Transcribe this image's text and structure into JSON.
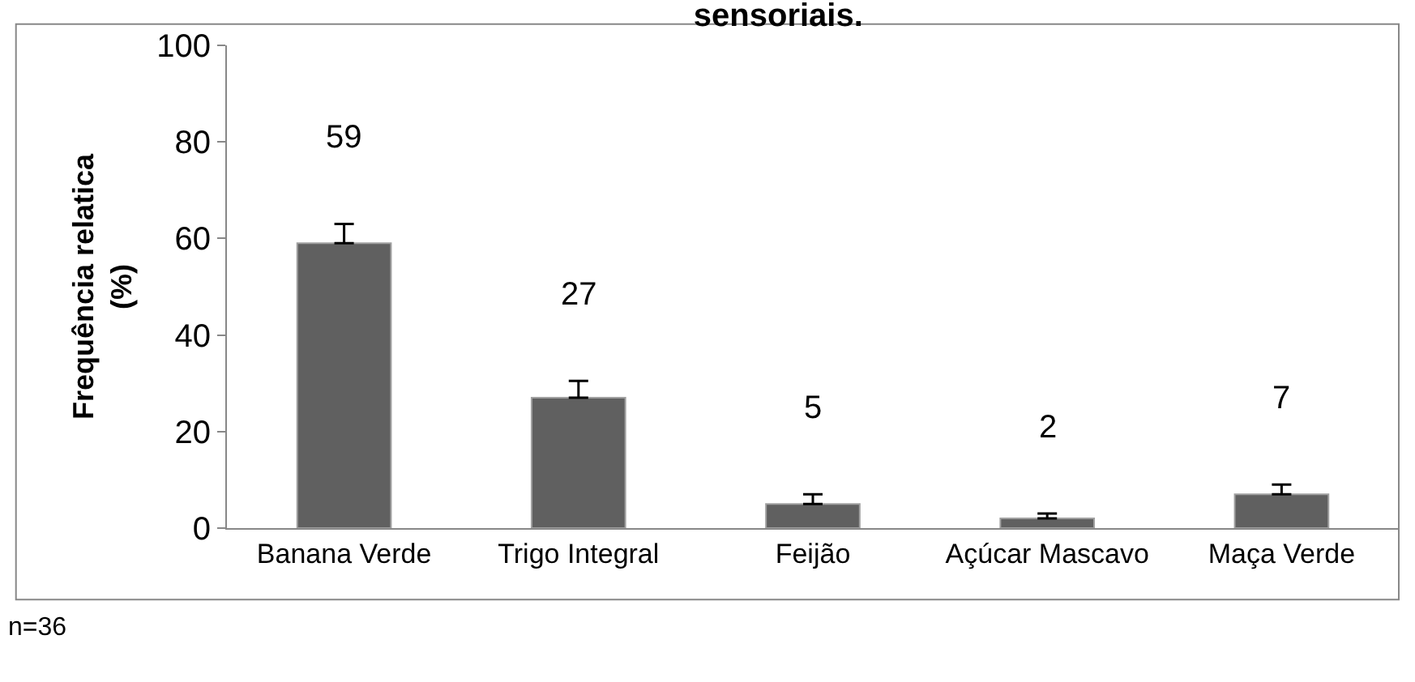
{
  "chart_data": {
    "type": "bar",
    "title": "sensoriais.",
    "ylabel": "Frequência relatica (%)",
    "categories": [
      "Banana Verde",
      "Trigo Integral",
      "Feijão",
      "Açúcar Mascavo",
      "Maça Verde"
    ],
    "values": [
      59,
      27,
      5,
      2,
      7
    ],
    "color": "#606060",
    "errors": [
      [
        59,
        63
      ],
      [
        27,
        30.5
      ],
      [
        5,
        7
      ],
      [
        2,
        3
      ],
      [
        7,
        9
      ]
    ],
    "data_labels": true,
    "ylim": [
      0,
      100
    ],
    "yticks": [
      0,
      20,
      40,
      60,
      80,
      100
    ],
    "legend": false,
    "annotations": [
      "n=36"
    ]
  }
}
